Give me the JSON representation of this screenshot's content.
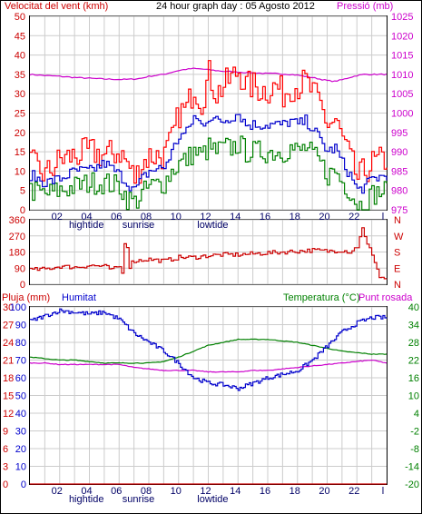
{
  "header": {
    "wind_title": "Velocitat del vent (kmh)",
    "graph_title": "24 hour graph day : 05 Agosto 2012",
    "pressure_title": "Pressió (mb)"
  },
  "colors": {
    "wind_gust": "#ff0000",
    "wind_avg": "#0000cc",
    "wind_low": "#008000",
    "pressure": "#cc00cc",
    "direction": "#cc0000",
    "humidity": "#0000cc",
    "temperature": "#008000",
    "dewpoint": "#cc00cc",
    "rain": "#cc0000",
    "grid": "#cccccc",
    "axis_left": "#cc0000",
    "axis_right": "#cc00cc",
    "axis_right_bottom": "#008000"
  },
  "x_axis": {
    "hour_labels": [
      "02",
      "04",
      "06",
      "08",
      "10",
      "12",
      "14",
      "16",
      "18",
      "20",
      "22",
      "l"
    ],
    "event_labels": [
      {
        "text": "hightide",
        "hour": 3.8
      },
      {
        "text": "sunrise",
        "hour": 7.3
      },
      {
        "text": "lowtide",
        "hour": 12.3
      }
    ]
  },
  "chart_data": [
    {
      "type": "line",
      "name": "wind-pressure",
      "xlim": [
        0,
        24
      ],
      "y_left": {
        "label": "Velocitat del vent (kmh)",
        "ylim": [
          0,
          50
        ],
        "ticks": [
          "0",
          "5",
          "10",
          "15",
          "20",
          "25",
          "30",
          "35",
          "40",
          "45",
          "50"
        ]
      },
      "y_right": {
        "label": "Pressió (mb)",
        "ylim": [
          975,
          1025
        ],
        "ticks": [
          "975",
          "980",
          "985",
          "990",
          "995",
          "1000",
          "1005",
          "1010",
          "1015",
          "1020",
          "1025"
        ]
      },
      "x": [
        0,
        1,
        2,
        3,
        4,
        5,
        6,
        6.5,
        7,
        7.5,
        8,
        9,
        9.5,
        10,
        10.5,
        11,
        11.5,
        12,
        12.5,
        13,
        13.5,
        14,
        14.5,
        15,
        15.5,
        16,
        16.5,
        17,
        17.5,
        18,
        18.5,
        19,
        19.5,
        20,
        20.5,
        21,
        21.5,
        22,
        22.5,
        23,
        24
      ],
      "series": [
        {
          "name": "wind_gust",
          "axis": "left",
          "values": [
            12,
            9,
            13,
            14,
            15,
            14,
            15,
            12,
            8,
            12,
            14,
            14,
            18,
            25,
            26,
            32,
            28,
            35,
            30,
            32,
            34,
            36,
            32,
            32,
            31,
            31,
            32,
            30,
            32,
            32,
            33,
            30,
            27,
            22,
            23,
            18,
            13,
            8,
            10,
            12,
            13
          ]
        },
        {
          "name": "wind_avg",
          "axis": "left",
          "values": [
            9,
            7,
            8,
            10,
            10,
            12,
            9,
            7,
            5,
            8,
            10,
            11,
            15,
            19,
            20,
            24,
            22,
            24,
            23,
            23,
            24,
            25,
            22,
            22,
            22,
            22,
            22,
            22,
            23,
            22,
            23,
            21,
            18,
            15,
            16,
            12,
            9,
            5,
            6,
            8,
            9
          ]
        },
        {
          "name": "wind_low",
          "axis": "left",
          "values": [
            5,
            4,
            5,
            6,
            7,
            7,
            6,
            3,
            2,
            4,
            6,
            7,
            10,
            12,
            13,
            15,
            14,
            16,
            15,
            16,
            16,
            17,
            15,
            15,
            15,
            15,
            15,
            15,
            16,
            15,
            16,
            14,
            12,
            9,
            10,
            7,
            5,
            1,
            2,
            4,
            5
          ]
        },
        {
          "name": "pressure",
          "axis": "right",
          "values": [
            1010,
            1009.7,
            1009.5,
            1009.2,
            1009,
            1008.8,
            1008.7,
            1008.7,
            1008.8,
            1009,
            1009.5,
            1010,
            1010.5,
            1011,
            1011.3,
            1011.5,
            1011.4,
            1011.2,
            1011,
            1010.8,
            1010.7,
            1010.6,
            1010.5,
            1010.4,
            1010.3,
            1010.2,
            1010.2,
            1010.1,
            1010,
            1009.8,
            1009.5,
            1009.2,
            1008.8,
            1008.4,
            1008.2,
            1008.6,
            1009.2,
            1009.7,
            1010,
            1010,
            1010
          ]
        }
      ]
    },
    {
      "type": "line",
      "name": "wind-direction",
      "xlim": [
        0,
        24
      ],
      "y_left": {
        "ylim": [
          0,
          360
        ],
        "ticks": [
          "0",
          "90",
          "180",
          "270",
          "360"
        ]
      },
      "y_right": {
        "ticks": [
          "N",
          "E",
          "S",
          "W",
          "N"
        ]
      },
      "x": [
        0,
        1,
        2,
        3,
        4,
        5,
        5.5,
        6,
        6.2,
        6.4,
        6.6,
        6.8,
        7,
        8,
        9,
        10,
        11,
        12,
        13,
        14,
        15,
        16,
        17,
        18,
        19,
        20,
        21,
        21.5,
        22,
        22.3,
        22.6,
        23,
        23.5,
        24
      ],
      "series": [
        {
          "name": "direction",
          "values": [
            80,
            85,
            100,
            95,
            105,
            100,
            80,
            100,
            50,
            330,
            90,
            120,
            130,
            140,
            130,
            150,
            150,
            160,
            165,
            165,
            170,
            175,
            180,
            185,
            190,
            185,
            190,
            180,
            210,
            320,
            230,
            170,
            40,
            30
          ]
        }
      ]
    },
    {
      "type": "line",
      "name": "humidity-temperature",
      "xlim": [
        0,
        24
      ],
      "y_left": {
        "labels": [
          "Pluja (mm)",
          "Humitat"
        ],
        "ticks_rain": [
          "0",
          "3",
          "6",
          "9",
          "12",
          "15",
          "18",
          "21",
          "24",
          "27",
          "30"
        ],
        "ticks_humidity": [
          "0",
          "10",
          "20",
          "30",
          "40",
          "50",
          "60",
          "70",
          "80",
          "90",
          "100"
        ],
        "ylim": [
          0,
          100
        ]
      },
      "y_right": {
        "labels": [
          "Temperatura (°C)",
          "Punt rosada"
        ],
        "ylim": [
          -20,
          40
        ],
        "ticks": [
          "-20",
          "-14",
          "-8",
          "-2",
          "4",
          "10",
          "16",
          "22",
          "28",
          "34",
          "40"
        ]
      },
      "x": [
        0,
        1,
        2,
        3,
        4,
        5,
        6,
        7,
        8,
        9,
        10,
        11,
        12,
        13,
        14,
        15,
        16,
        17,
        18,
        19,
        20,
        21,
        22,
        23,
        24
      ],
      "series": [
        {
          "name": "humidity",
          "axis": "left",
          "values": [
            92,
            95,
            98,
            97,
            96,
            97,
            93,
            85,
            80,
            75,
            68,
            60,
            57,
            56,
            54,
            57,
            60,
            62,
            64,
            70,
            78,
            86,
            91,
            94,
            94
          ]
        },
        {
          "name": "temperature",
          "axis": "right",
          "values": [
            23,
            22.5,
            22,
            22,
            21.5,
            21,
            21,
            21,
            21,
            21.5,
            23,
            25,
            27,
            28,
            29,
            29,
            29,
            28.5,
            28,
            27,
            26,
            25,
            24.5,
            24,
            24
          ]
        },
        {
          "name": "dewpoint",
          "axis": "right",
          "values": [
            21,
            21,
            20.5,
            20.5,
            20.5,
            20.5,
            20.5,
            19.5,
            19,
            18.5,
            18.5,
            18.5,
            18,
            18,
            18,
            18.5,
            18.5,
            19,
            19.5,
            20,
            20.5,
            21,
            21.5,
            22,
            21
          ]
        },
        {
          "name": "rain",
          "axis": "left",
          "values": [
            0,
            0,
            0,
            0,
            0,
            0,
            0,
            0,
            0,
            0,
            0,
            0,
            0,
            0,
            0,
            0,
            0,
            0,
            0,
            0,
            0,
            0,
            0,
            0,
            0
          ]
        }
      ]
    }
  ],
  "panel3_labels": {
    "rain_label": "Pluja (mm)",
    "humidity_label": "Humitat",
    "temperature_label": "Temperatura (°C)",
    "dewpoint_label": "Punt rosada"
  }
}
